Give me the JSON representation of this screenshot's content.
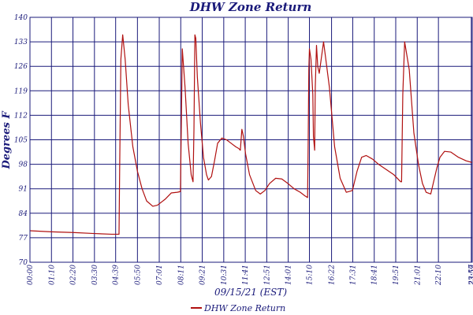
{
  "chart_data": {
    "type": "line",
    "title": "DHW Zone Return",
    "xlabel": "09/15/21 (EST)",
    "ylabel": "Degrees F",
    "ylim": [
      70,
      140
    ],
    "yticks": [
      70,
      77,
      84,
      91,
      98,
      105,
      112,
      119,
      126,
      133,
      140
    ],
    "xlim": [
      0,
      1440
    ],
    "xticks": [
      {
        "t": 0,
        "label": "00:00"
      },
      {
        "t": 70,
        "label": "01:10"
      },
      {
        "t": 140,
        "label": "02:20"
      },
      {
        "t": 210,
        "label": "03:30"
      },
      {
        "t": 279,
        "label": "04:39"
      },
      {
        "t": 350,
        "label": "05:50"
      },
      {
        "t": 421,
        "label": "07:01"
      },
      {
        "t": 491,
        "label": "08:11"
      },
      {
        "t": 561,
        "label": "09:21"
      },
      {
        "t": 631,
        "label": "10:31"
      },
      {
        "t": 701,
        "label": "11:41"
      },
      {
        "t": 771,
        "label": "12:51"
      },
      {
        "t": 841,
        "label": "14:01"
      },
      {
        "t": 910,
        "label": "15:10"
      },
      {
        "t": 982,
        "label": "16:22"
      },
      {
        "t": 1051,
        "label": "17:31"
      },
      {
        "t": 1121,
        "label": "18:41"
      },
      {
        "t": 1191,
        "label": "19:51"
      },
      {
        "t": 1261,
        "label": "21:01"
      },
      {
        "t": 1330,
        "label": "22:10"
      },
      {
        "t": 1437,
        "label": "23:57"
      },
      {
        "t": 1440,
        "label": "23:59"
      }
    ],
    "grid": true,
    "legend": "bottom",
    "colors": {
      "line": "#b01010",
      "grid": "#1a1a7a",
      "text": "#1a1a7a"
    },
    "series": [
      {
        "name": "DHW Zone Return",
        "t": [
          0,
          70,
          140,
          210,
          266,
          290,
          292,
          296,
          302,
          310,
          320,
          335,
          350,
          365,
          380,
          400,
          415,
          440,
          460,
          480,
          490,
          493,
          496,
          505,
          515,
          525,
          531,
          534,
          537,
          540,
          545,
          555,
          565,
          575,
          581,
          591,
          601,
          611,
          625,
          640,
          655,
          670,
          680,
          685,
          690,
          695,
          702,
          715,
          735,
          750,
          765,
          780,
          800,
          820,
          840,
          860,
          880,
          895,
          904,
          906,
          908,
          910,
          915,
          921,
          923,
          927,
          929,
          933,
          937,
          942,
          956,
          975,
          992,
          1010,
          1030,
          1050,
          1065,
          1080,
          1095,
          1115,
          1135,
          1160,
          1185,
          1207,
          1210,
          1214,
          1220,
          1235,
          1250,
          1265,
          1278,
          1290,
          1305,
          1325,
          1335,
          1350,
          1370,
          1395,
          1420,
          1440
        ],
        "values": [
          79,
          78.7,
          78.5,
          78.2,
          78,
          78,
          96,
          128,
          135,
          128,
          115,
          103,
          96,
          91,
          87.5,
          86,
          86.3,
          88,
          89.8,
          90,
          90.2,
          110,
          131,
          120,
          104,
          95,
          93,
          108,
          135,
          134,
          123,
          110,
          100,
          95,
          93.5,
          94.5,
          99,
          104,
          105.5,
          105,
          104,
          103,
          102.5,
          102,
          108,
          106,
          101,
          95,
          90.5,
          89.5,
          90.5,
          92.5,
          94,
          93.8,
          92.5,
          91,
          90,
          89,
          88.5,
          105,
          125,
          131,
          128,
          118,
          106,
          102,
          120,
          132,
          126,
          124,
          133,
          120,
          103,
          94,
          90,
          90.5,
          96,
          100,
          100.5,
          99.5,
          98,
          96.5,
          95,
          93,
          93,
          118,
          133,
          125,
          107,
          98,
          92.5,
          90,
          89.5,
          97,
          100,
          101.7,
          101.5,
          100,
          99,
          98.5
        ]
      }
    ]
  }
}
